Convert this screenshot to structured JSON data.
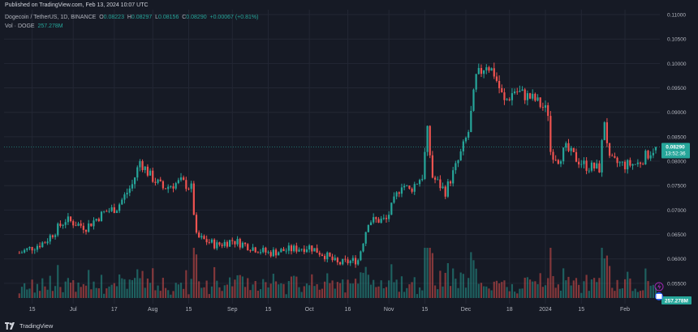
{
  "header": {
    "published": "Published on TradingView.com, Feb 13, 2024 10:07 UTC",
    "symbol": "Dogecoin / TetherUS, 1D, BINANCE",
    "ohlc": {
      "o_label": "O",
      "o": "0.08223",
      "h_label": "H",
      "h": "0.08297",
      "l_label": "L",
      "l": "0.08156",
      "c_label": "C",
      "c": "0.08290",
      "change": "+0.00067 (+0.81%)"
    },
    "volume_label": "Vol · DOGE",
    "volume_value": "257.278M"
  },
  "price_tag": {
    "value": "0.08290",
    "countdown": "13:52:36"
  },
  "volume_tag": {
    "value": "257.278M"
  },
  "footer": {
    "brand": "TradingView"
  },
  "colors": {
    "up": "#26a69a",
    "down": "#ef5350",
    "background": "#161a25",
    "grid": "#232734"
  },
  "chart_data": {
    "type": "candlestick",
    "title": "Dogecoin / TetherUS, 1D, BINANCE",
    "ylim": [
      0.0525,
      0.111
    ],
    "y_ticks": [
      "0.11000",
      "0.10500",
      "0.10000",
      "0.09500",
      "0.09000",
      "0.08500",
      "0.08000",
      "0.07500",
      "0.07000",
      "0.06500",
      "0.06000",
      "0.05500"
    ],
    "x_ticks": [
      {
        "label": "15",
        "date": "2023-06-15"
      },
      {
        "label": "Jul",
        "date": "2023-07-01"
      },
      {
        "label": "17",
        "date": "2023-07-17"
      },
      {
        "label": "Aug",
        "date": "2023-08-01"
      },
      {
        "label": "15",
        "date": "2023-08-15"
      },
      {
        "label": "Sep",
        "date": "2023-09-01"
      },
      {
        "label": "15",
        "date": "2023-09-15"
      },
      {
        "label": "Oct",
        "date": "2023-10-01"
      },
      {
        "label": "16",
        "date": "2023-10-16"
      },
      {
        "label": "Nov",
        "date": "2023-11-01"
      },
      {
        "label": "15",
        "date": "2023-11-15"
      },
      {
        "label": "Dec",
        "date": "2023-12-01"
      },
      {
        "label": "18",
        "date": "2023-12-18"
      },
      {
        "label": "2024",
        "date": "2024-01-01"
      },
      {
        "label": "15",
        "date": "2024-01-15"
      },
      {
        "label": "Feb",
        "date": "2024-02-01"
      }
    ],
    "grid": true,
    "key_points": [
      {
        "date": "2023-06-10",
        "close": 0.0612
      },
      {
        "date": "2023-06-20",
        "close": 0.0635
      },
      {
        "date": "2023-06-28",
        "close": 0.068
      },
      {
        "date": "2023-07-06",
        "close": 0.0665
      },
      {
        "date": "2023-07-13",
        "close": 0.0695
      },
      {
        "date": "2023-07-18",
        "close": 0.0705
      },
      {
        "date": "2023-07-24",
        "close": 0.0752
      },
      {
        "date": "2023-07-27",
        "close": 0.08
      },
      {
        "date": "2023-07-31",
        "close": 0.077
      },
      {
        "date": "2023-08-05",
        "close": 0.0745
      },
      {
        "date": "2023-08-12",
        "close": 0.0758
      },
      {
        "date": "2023-08-16",
        "close": 0.0745
      },
      {
        "date": "2023-08-18",
        "close": 0.0645
      },
      {
        "date": "2023-08-26",
        "close": 0.0628
      },
      {
        "date": "2023-09-01",
        "close": 0.0638
      },
      {
        "date": "2023-09-08",
        "close": 0.0625
      },
      {
        "date": "2023-09-15",
        "close": 0.0612
      },
      {
        "date": "2023-09-22",
        "close": 0.0618
      },
      {
        "date": "2023-10-01",
        "close": 0.0625
      },
      {
        "date": "2023-10-08",
        "close": 0.0605
      },
      {
        "date": "2023-10-12",
        "close": 0.059
      },
      {
        "date": "2023-10-20",
        "close": 0.0598
      },
      {
        "date": "2023-10-24",
        "close": 0.0678
      },
      {
        "date": "2023-10-31",
        "close": 0.068
      },
      {
        "date": "2023-11-06",
        "close": 0.0755
      },
      {
        "date": "2023-11-09",
        "close": 0.074
      },
      {
        "date": "2023-11-14",
        "close": 0.077
      },
      {
        "date": "2023-11-16",
        "close": 0.086
      },
      {
        "date": "2023-11-18",
        "close": 0.0768
      },
      {
        "date": "2023-11-23",
        "close": 0.0738
      },
      {
        "date": "2023-11-28",
        "close": 0.08
      },
      {
        "date": "2023-12-02",
        "close": 0.086
      },
      {
        "date": "2023-12-05",
        "close": 0.097
      },
      {
        "date": "2023-12-09",
        "close": 0.1
      },
      {
        "date": "2023-12-12",
        "close": 0.098
      },
      {
        "date": "2023-12-16",
        "close": 0.092
      },
      {
        "date": "2023-12-20",
        "close": 0.0945
      },
      {
        "date": "2023-12-28",
        "close": 0.0925
      },
      {
        "date": "2024-01-02",
        "close": 0.09
      },
      {
        "date": "2024-01-03",
        "close": 0.082
      },
      {
        "date": "2024-01-06",
        "close": 0.0805
      },
      {
        "date": "2024-01-09",
        "close": 0.0825
      },
      {
        "date": "2024-01-13",
        "close": 0.0805
      },
      {
        "date": "2024-01-17",
        "close": 0.079
      },
      {
        "date": "2024-01-22",
        "close": 0.0785
      },
      {
        "date": "2024-01-24",
        "close": 0.0885
      },
      {
        "date": "2024-01-26",
        "close": 0.08
      },
      {
        "date": "2024-02-01",
        "close": 0.0792
      },
      {
        "date": "2024-02-06",
        "close": 0.0795
      },
      {
        "date": "2024-02-10",
        "close": 0.0815
      },
      {
        "date": "2024-02-13",
        "close": 0.0829
      }
    ],
    "last": {
      "open": 0.08223,
      "high": 0.08297,
      "low": 0.08156,
      "close": 0.0829
    }
  }
}
